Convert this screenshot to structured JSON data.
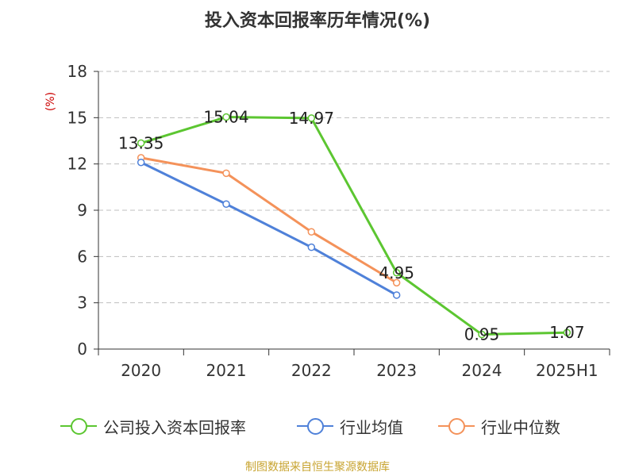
{
  "title": "投入资本回报率历年情况(%)",
  "source": "制图数据来自恒生聚源数据库",
  "colors": {
    "company": "#5cc631",
    "industry_avg": "#4f81d9",
    "industry_median": "#f4925a",
    "grid": "#bfbfbf",
    "axis": "#333333",
    "ylabel": "#cc0000"
  },
  "chart_data": {
    "type": "line",
    "title": "投入资本回报率历年情况(%)",
    "xlabel": "",
    "ylabel": "(%)",
    "categories": [
      "2020",
      "2021",
      "2022",
      "2023",
      "2024",
      "2025H1"
    ],
    "ylim": [
      0,
      18
    ],
    "yticks": [
      0,
      3,
      6,
      9,
      12,
      15,
      18
    ],
    "grid": true,
    "legend_position": "bottom",
    "series": [
      {
        "name": "公司投入资本回报率",
        "values": [
          13.35,
          15.04,
          14.97,
          4.95,
          0.95,
          1.07
        ],
        "show_labels": true
      },
      {
        "name": "行业均值",
        "values": [
          12.1,
          9.4,
          6.6,
          3.5,
          null,
          null
        ],
        "show_labels": false
      },
      {
        "name": "行业中位数",
        "values": [
          12.4,
          11.4,
          7.6,
          4.3,
          null,
          null
        ],
        "show_labels": false
      }
    ]
  }
}
